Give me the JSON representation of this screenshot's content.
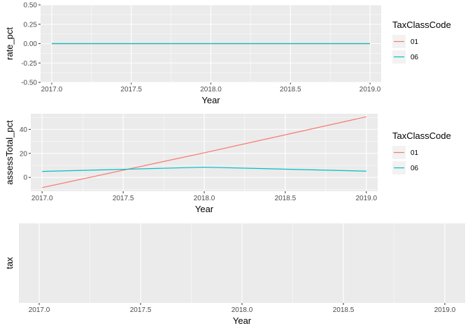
{
  "chart_data": [
    {
      "type": "line",
      "xlabel": "Year",
      "ylabel": "rate_pct",
      "xlim": [
        2016.93,
        2019.07
      ],
      "ylim": [
        -0.5,
        0.5
      ],
      "x_ticks": [
        2017.0,
        2017.5,
        2018.0,
        2018.5,
        2019.0
      ],
      "x_tick_labels": [
        "2017.0",
        "2017.5",
        "2018.0",
        "2018.5",
        "2019.0"
      ],
      "y_ticks": [
        -0.5,
        -0.25,
        0,
        0.25,
        0.5
      ],
      "y_tick_labels": [
        "-0.50",
        "-0.25",
        "0.00",
        "0.25",
        "0.50"
      ],
      "grid": true,
      "legend": {
        "title": "TaxClassCode",
        "placement": "right",
        "entries": [
          {
            "label": "01",
            "color": "#F8766D"
          },
          {
            "label": "06",
            "color": "#00BFC4"
          }
        ]
      },
      "series": [
        {
          "name": "01",
          "color": "#F8766D",
          "x": [
            2017,
            2018,
            2019
          ],
          "y": [
            0,
            0,
            0
          ]
        },
        {
          "name": "06",
          "color": "#00BFC4",
          "x": [
            2017,
            2018,
            2019
          ],
          "y": [
            0,
            0,
            0
          ]
        }
      ]
    },
    {
      "type": "line",
      "xlabel": "Year",
      "ylabel": "assessTotal_pct",
      "xlim": [
        2016.93,
        2019.07
      ],
      "ylim": [
        -11.5,
        53
      ],
      "x_ticks": [
        2017.0,
        2017.5,
        2018.0,
        2018.5,
        2019.0
      ],
      "x_tick_labels": [
        "2017.0",
        "2017.5",
        "2018.0",
        "2018.5",
        "2019.0"
      ],
      "y_ticks": [
        0,
        20,
        40
      ],
      "y_tick_labels": [
        "0",
        "20",
        "40"
      ],
      "grid": true,
      "legend": {
        "title": "TaxClassCode",
        "placement": "right",
        "entries": [
          {
            "label": "01",
            "color": "#F8766D"
          },
          {
            "label": "06",
            "color": "#00BFC4"
          }
        ]
      },
      "series": [
        {
          "name": "01",
          "color": "#F8766D",
          "x": [
            2017,
            2018,
            2019
          ],
          "y": [
            -8.5,
            20.5,
            50.5
          ]
        },
        {
          "name": "06",
          "color": "#00BFC4",
          "x": [
            2017,
            2018,
            2019
          ],
          "y": [
            5.0,
            8.5,
            5.2
          ]
        }
      ]
    },
    {
      "type": "line",
      "xlabel": "Year",
      "ylabel": "tax",
      "xlim": [
        2016.9,
        2019.1
      ],
      "ylim": [
        0,
        1
      ],
      "x_ticks": [
        2017.0,
        2017.5,
        2018.0,
        2018.5,
        2019.0
      ],
      "x_tick_labels": [
        "2017.0",
        "2017.5",
        "2018.0",
        "2018.5",
        "2019.0"
      ],
      "y_ticks": [],
      "y_tick_labels": [],
      "grid": true,
      "series": []
    }
  ]
}
